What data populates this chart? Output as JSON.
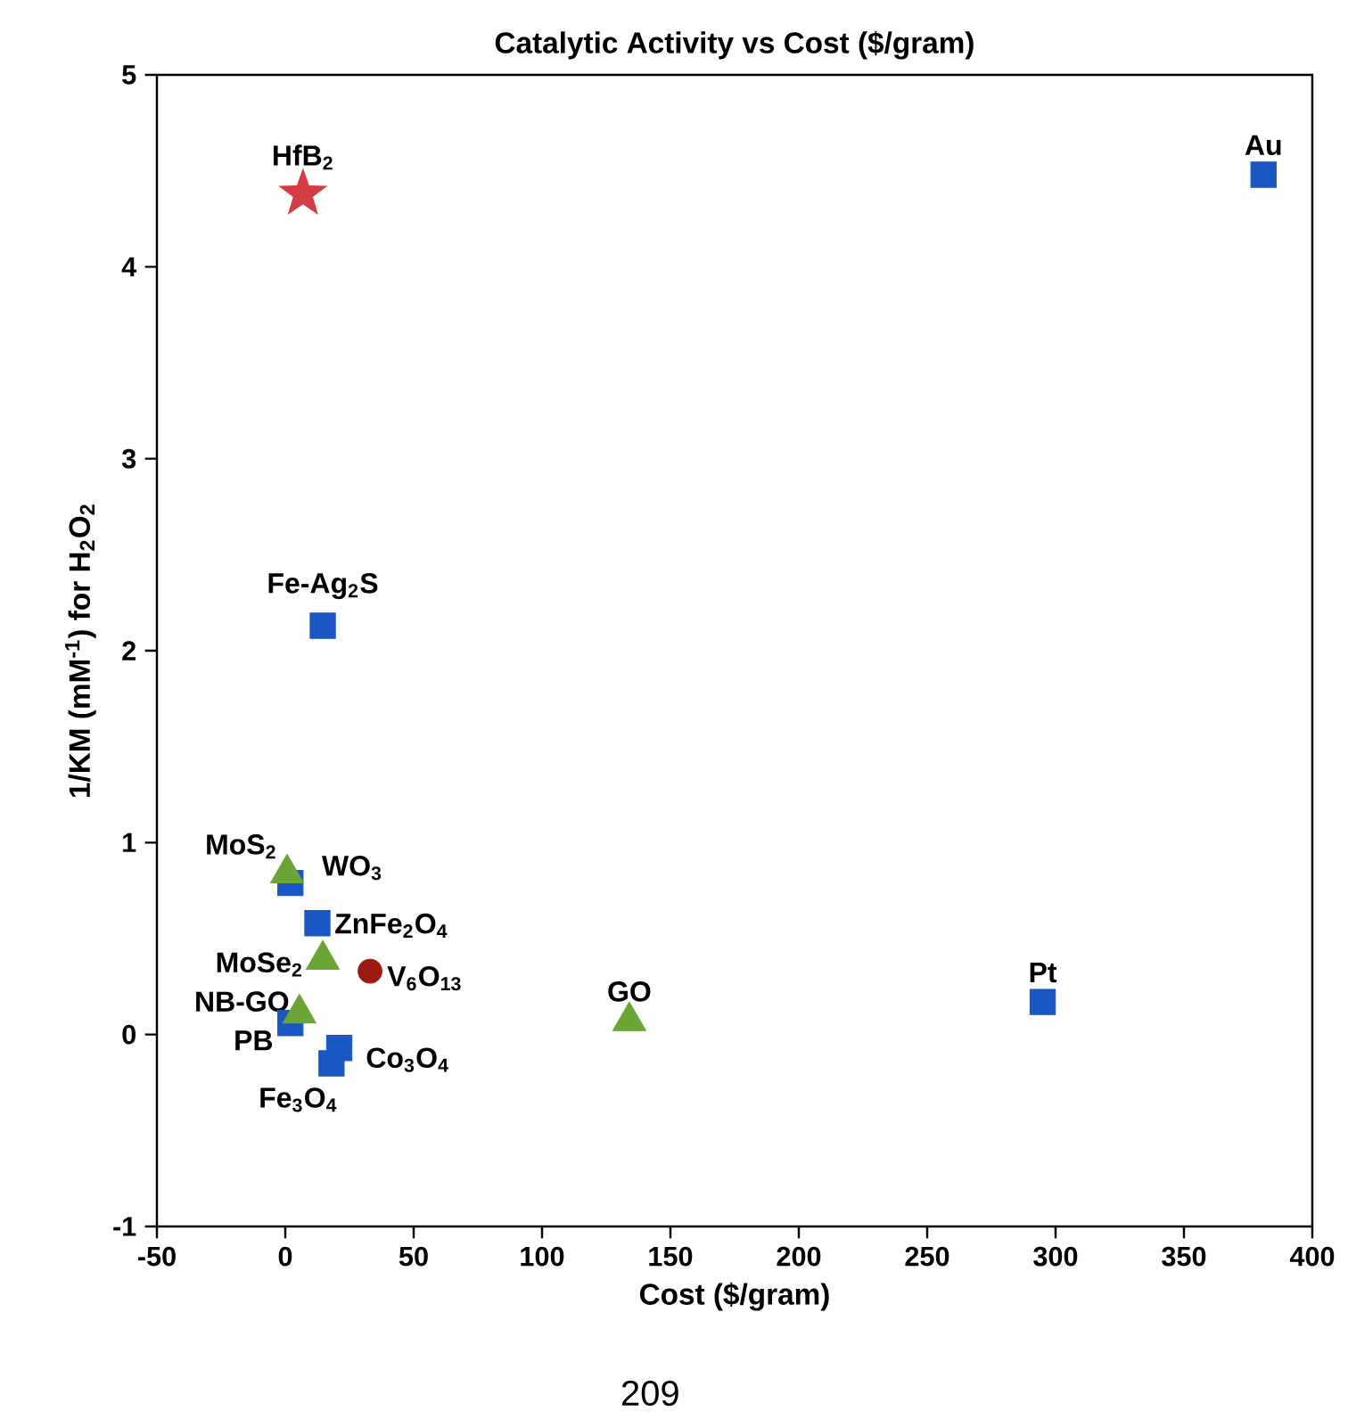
{
  "chart_data": {
    "type": "scatter",
    "title": "Catalytic Activity vs Cost ($/gram)",
    "xlabel": "Cost ($/gram)",
    "ylabel": "1/KM (mM$^{-1}$) for H$_{2}$O$_{2}$",
    "xlim": [
      -50,
      400
    ],
    "xticks": [
      -50,
      0,
      50,
      100,
      150,
      200,
      250,
      300,
      350,
      400
    ],
    "ylim": [
      -1,
      5
    ],
    "yticks": [
      -1,
      0,
      1,
      2,
      3,
      4,
      5
    ],
    "grid": false,
    "series": [
      {
        "color": "#1a56c4",
        "marker": "square",
        "x": [
          381,
          14.6,
          2,
          12.5,
          2,
          21,
          18,
          295
        ],
        "values": [
          4.48,
          2.13,
          0.79,
          0.58,
          0.06,
          -0.07,
          -0.15,
          0.17
        ]
      },
      {
        "color": "#6aa535",
        "marker": "triangle",
        "x": [
          0.7,
          14.6,
          5.5,
          134
        ],
        "values": [
          0.84,
          0.39,
          0.11,
          0.07
        ]
      },
      {
        "color": "#d63c44",
        "marker": "star",
        "x": [
          6.9
        ],
        "values": [
          4.38
        ]
      },
      {
        "color": "#9b1b10",
        "marker": "circle",
        "x": [
          33
        ],
        "values": [
          0.33
        ]
      }
    ],
    "annotations": [
      {
        "text": "HfB$_{2}$",
        "x": 6.9,
        "y": 4.38
      },
      {
        "text": "Au",
        "x": 381,
        "y": 4.48
      },
      {
        "text": "Fe-Ag$_{2}$S",
        "x": 14.6,
        "y": 2.13
      },
      {
        "text": "MoS$_{2}$",
        "x": 0.7,
        "y": 0.84
      },
      {
        "text": "WO$_{3}$",
        "x": 2,
        "y": 0.79
      },
      {
        "text": "ZnFe$_{2}$O$_{4}$",
        "x": 12.5,
        "y": 0.58
      },
      {
        "text": "MoSe$_{2}$",
        "x": 14.6,
        "y": 0.39
      },
      {
        "text": "V$_{6}$O$_{13}$",
        "x": 33,
        "y": 0.33
      },
      {
        "text": "NB-GO",
        "x": 5.5,
        "y": 0.11
      },
      {
        "text": "PB",
        "x": 2,
        "y": 0.06
      },
      {
        "text": "Co$_{3}$O$_{4}$",
        "x": 21,
        "y": -0.07
      },
      {
        "text": "Fe$_{3}$O$_{4}$",
        "x": 18,
        "y": -0.15
      },
      {
        "text": "GO",
        "x": 134,
        "y": 0.07
      },
      {
        "text": "Pt",
        "x": 295,
        "y": 0.17
      },
      "209"
    ]
  }
}
